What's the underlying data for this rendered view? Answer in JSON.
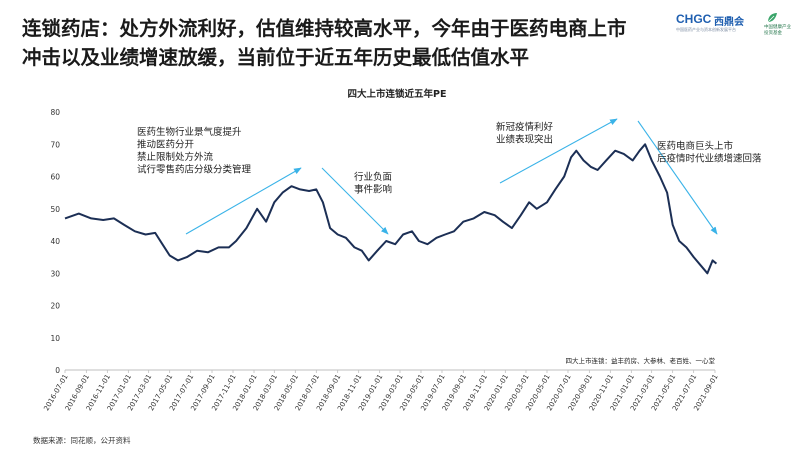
{
  "slide": {
    "title": "连锁药店：处方外流利好，估值维持较高水平，今年由于医药电商上市冲击以及业绩增速放缓，当前位于近五年历史最低估值水平",
    "source": "数据来源：同花顺，公开资料"
  },
  "logo": {
    "brand": "CHGC",
    "brand_cn": "西鼎会",
    "sub1": "中国医药产业与资本创新发展平台",
    "sub2_line1": "中国健康产业",
    "sub2_line2": "投资基金"
  },
  "colors": {
    "line": "#1c2f55",
    "arrow": "#3ab3e8",
    "axis": "#bfbfbf",
    "text": "#222222"
  },
  "chart_data": {
    "type": "line",
    "title": "四大上市连锁近五年PE",
    "ylim": [
      0,
      80
    ],
    "yticks": [
      0,
      10,
      20,
      30,
      40,
      50,
      60,
      70,
      80
    ],
    "x_start": "2016-07-01",
    "x_end": "2021-09-01",
    "xticks": [
      "2016-07-01",
      "2016-09-01",
      "2016-11-01",
      "2017-01-01",
      "2017-03-01",
      "2017-05-01",
      "2017-07-01",
      "2017-09-01",
      "2017-11-01",
      "2018-01-01",
      "2018-03-01",
      "2018-05-01",
      "2018-07-01",
      "2018-09-01",
      "2018-11-01",
      "2019-01-01",
      "2019-03-01",
      "2019-05-01",
      "2019-07-01",
      "2019-09-01",
      "2019-11-01",
      "2020-01-01",
      "2020-03-01",
      "2020-05-01",
      "2020-07-01",
      "2020-09-01",
      "2020-11-01",
      "2021-01-01",
      "2021-03-01",
      "2021-05-01",
      "2021-07-01",
      "2021-09-01"
    ],
    "series": [
      {
        "points": [
          [
            "2016-07-01",
            47
          ],
          [
            "2016-08-10",
            48.5
          ],
          [
            "2016-09-15",
            47
          ],
          [
            "2016-10-20",
            46.5
          ],
          [
            "2016-11-20",
            47
          ],
          [
            "2016-12-20",
            45
          ],
          [
            "2017-01-20",
            43
          ],
          [
            "2017-02-20",
            42
          ],
          [
            "2017-03-20",
            42.5
          ],
          [
            "2017-04-10",
            39
          ],
          [
            "2017-05-01",
            35.5
          ],
          [
            "2017-05-25",
            34
          ],
          [
            "2017-06-20",
            35
          ],
          [
            "2017-07-20",
            37
          ],
          [
            "2017-08-20",
            36.5
          ],
          [
            "2017-09-20",
            38
          ],
          [
            "2017-10-20",
            38
          ],
          [
            "2017-11-10",
            40
          ],
          [
            "2017-12-10",
            44
          ],
          [
            "2018-01-10",
            50
          ],
          [
            "2018-02-05",
            46
          ],
          [
            "2018-03-01",
            52
          ],
          [
            "2018-03-25",
            55
          ],
          [
            "2018-04-20",
            57
          ],
          [
            "2018-05-15",
            56
          ],
          [
            "2018-06-10",
            55.5
          ],
          [
            "2018-07-01",
            56
          ],
          [
            "2018-07-20",
            52
          ],
          [
            "2018-08-10",
            44
          ],
          [
            "2018-09-01",
            42
          ],
          [
            "2018-09-25",
            41
          ],
          [
            "2018-10-20",
            38
          ],
          [
            "2018-11-10",
            37
          ],
          [
            "2018-11-30",
            34
          ],
          [
            "2018-12-25",
            37
          ],
          [
            "2019-01-20",
            40
          ],
          [
            "2019-02-15",
            39
          ],
          [
            "2019-03-10",
            42
          ],
          [
            "2019-04-05",
            43
          ],
          [
            "2019-04-25",
            40
          ],
          [
            "2019-05-20",
            39
          ],
          [
            "2019-06-15",
            41
          ],
          [
            "2019-07-10",
            42
          ],
          [
            "2019-08-05",
            43
          ],
          [
            "2019-09-01",
            46
          ],
          [
            "2019-10-01",
            47
          ],
          [
            "2019-11-01",
            49
          ],
          [
            "2019-12-01",
            48
          ],
          [
            "2019-12-25",
            46
          ],
          [
            "2020-01-20",
            44
          ],
          [
            "2020-02-15",
            48
          ],
          [
            "2020-03-10",
            52
          ],
          [
            "2020-04-01",
            50
          ],
          [
            "2020-05-01",
            52
          ],
          [
            "2020-05-25",
            56
          ],
          [
            "2020-06-20",
            60
          ],
          [
            "2020-07-10",
            66
          ],
          [
            "2020-07-25",
            68
          ],
          [
            "2020-08-15",
            65
          ],
          [
            "2020-09-05",
            63
          ],
          [
            "2020-09-25",
            62
          ],
          [
            "2020-10-20",
            65
          ],
          [
            "2020-11-15",
            68
          ],
          [
            "2020-12-10",
            67
          ],
          [
            "2021-01-05",
            65
          ],
          [
            "2021-01-25",
            68
          ],
          [
            "2021-02-10",
            70
          ],
          [
            "2021-03-01",
            65
          ],
          [
            "2021-03-25",
            60
          ],
          [
            "2021-04-15",
            55
          ],
          [
            "2021-05-01",
            45
          ],
          [
            "2021-05-20",
            40
          ],
          [
            "2021-06-10",
            38
          ],
          [
            "2021-07-01",
            35
          ],
          [
            "2021-07-25",
            32
          ],
          [
            "2021-08-10",
            30
          ],
          [
            "2021-08-25",
            34
          ],
          [
            "2021-09-05",
            33
          ]
        ]
      }
    ],
    "annotations": [
      {
        "lines": [
          "医药生物行业景气度提升",
          "推动医药分开",
          "禁止限制处方外流",
          "试行零售药店分级分类管理"
        ]
      },
      {
        "lines": [
          "行业负面",
          "事件影响"
        ]
      },
      {
        "lines": [
          "新冠疫情利好",
          "业绩表现突出"
        ]
      },
      {
        "lines": [
          "医药电商巨头上市",
          "后疫情时代业绩增速回落"
        ]
      }
    ],
    "note": "四大上市连锁：益丰药房、大参林、老百姓、一心堂"
  }
}
